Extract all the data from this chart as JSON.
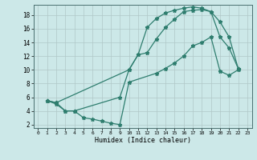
{
  "xlabel": "Humidex (Indice chaleur)",
  "bg_color": "#cce8e8",
  "grid_color": "#b0c8c8",
  "line_color": "#2e7d6e",
  "xlim": [
    -0.5,
    23.5
  ],
  "ylim": [
    1.5,
    19.5
  ],
  "xticks": [
    0,
    1,
    2,
    3,
    4,
    5,
    6,
    7,
    8,
    9,
    10,
    11,
    12,
    13,
    14,
    15,
    16,
    17,
    18,
    19,
    20,
    21,
    22,
    23
  ],
  "yticks": [
    2,
    4,
    6,
    8,
    10,
    12,
    14,
    16,
    18
  ],
  "curve_top_x": [
    1,
    2,
    10,
    11,
    12,
    13,
    14,
    15,
    16,
    17,
    18,
    19,
    20,
    21,
    22
  ],
  "curve_top_y": [
    5.5,
    5.2,
    10.0,
    12.2,
    16.2,
    17.5,
    18.3,
    18.7,
    19.0,
    19.2,
    19.0,
    18.5,
    17.0,
    14.8,
    10.2
  ],
  "curve_mid_x": [
    1,
    2,
    3,
    4,
    9,
    10,
    11,
    12,
    13,
    14,
    15,
    16,
    17,
    18,
    19,
    20,
    21,
    22
  ],
  "curve_mid_y": [
    5.5,
    5.2,
    4.0,
    4.0,
    6.0,
    10.0,
    12.2,
    12.5,
    14.5,
    16.2,
    17.4,
    18.5,
    18.7,
    18.8,
    18.5,
    14.8,
    13.2,
    10.2
  ],
  "curve_bot_x": [
    1,
    2,
    3,
    4,
    5,
    6,
    7,
    8,
    9,
    10,
    13,
    14,
    15,
    16,
    17,
    18,
    19,
    20,
    21,
    22
  ],
  "curve_bot_y": [
    5.5,
    5.0,
    4.0,
    4.0,
    3.0,
    2.8,
    2.5,
    2.2,
    2.0,
    8.2,
    9.5,
    10.2,
    11.0,
    12.0,
    13.5,
    14.0,
    14.8,
    9.8,
    9.2,
    10.0
  ]
}
